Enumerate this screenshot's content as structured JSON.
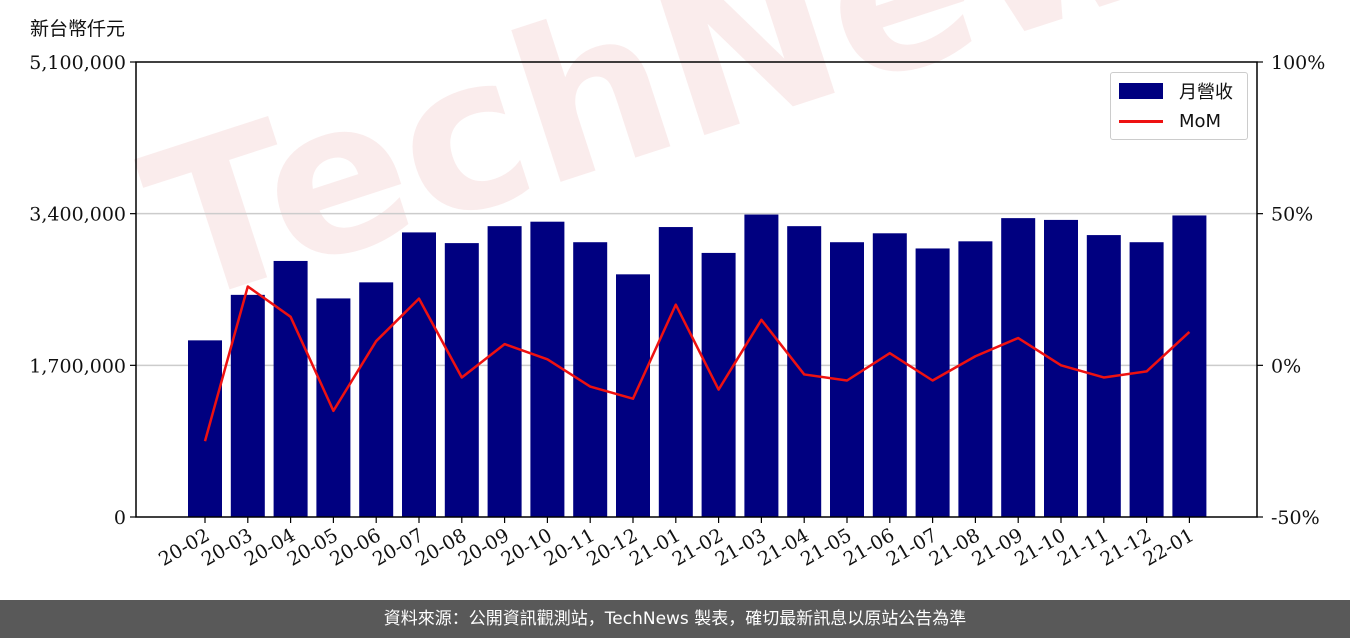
{
  "unit_label": "新台幣仟元",
  "footer_text": "資料來源：公開資訊觀測站，TechNews 製表，確切最新訊息以原站公告為準",
  "watermark": "TechNews",
  "colors": {
    "bar": "#000080",
    "line": "#ee1111",
    "grid": "#cccccc"
  },
  "chart_data": {
    "type": "bar",
    "categories": [
      "20-02",
      "20-03",
      "20-04",
      "20-05",
      "20-06",
      "20-07",
      "20-08",
      "20-09",
      "20-10",
      "20-11",
      "20-12",
      "21-01",
      "21-02",
      "21-03",
      "21-04",
      "21-05",
      "21-06",
      "21-07",
      "21-08",
      "21-09",
      "21-10",
      "21-11",
      "21-12",
      "22-01"
    ],
    "series": [
      {
        "name": "月營收",
        "type": "bar",
        "axis": "left",
        "values": [
          1980000,
          2490000,
          2870000,
          2450000,
          2630000,
          3190000,
          3070000,
          3260000,
          3310000,
          3080000,
          2720000,
          3250000,
          2960000,
          3390000,
          3260000,
          3080000,
          3180000,
          3010000,
          3090000,
          3350000,
          3330000,
          3160000,
          3080000,
          3380000
        ]
      },
      {
        "name": "MoM",
        "type": "line",
        "axis": "right",
        "values": [
          -25,
          26,
          16,
          -15,
          8,
          22,
          -4,
          7,
          2,
          -7,
          -11,
          20,
          -8,
          15,
          -3,
          -5,
          4,
          -5,
          3,
          9,
          0,
          -4,
          -2,
          11
        ]
      }
    ],
    "y_left": {
      "lim": [
        0,
        5100000
      ],
      "ticks": [
        0,
        1700000,
        3400000,
        5100000
      ],
      "tick_labels": [
        "0",
        "1,700,000",
        "3,400,000",
        "5,100,000"
      ]
    },
    "y_right": {
      "lim": [
        -50,
        100
      ],
      "ticks": [
        -50,
        0,
        50,
        100
      ],
      "tick_labels": [
        "-50%",
        "0%",
        "50%",
        "100%"
      ]
    },
    "grid": true,
    "legend": {
      "position": "top-right",
      "entries": [
        "月營收",
        "MoM"
      ]
    }
  }
}
